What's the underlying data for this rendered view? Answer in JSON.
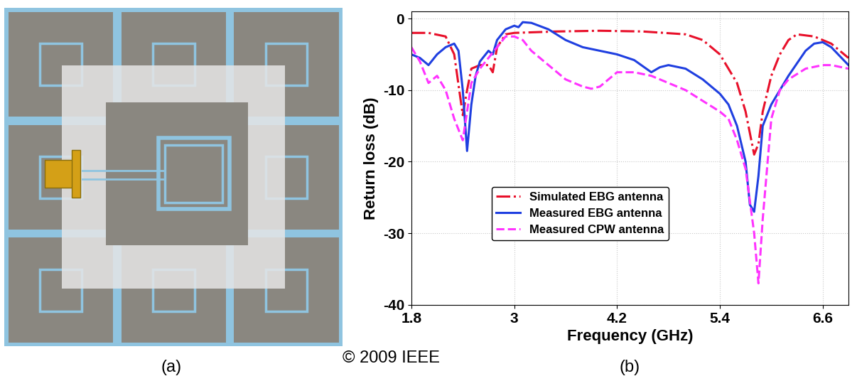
{
  "chart_data": {
    "type": "line",
    "x_label": "Frequency (GHz)",
    "y_label": "Return loss (dB)",
    "annotations": [
      "(a)",
      "(b)",
      "© 2009 IEEE"
    ],
    "xlim": [
      1.8,
      6.9
    ],
    "xticks": [
      1.8,
      3,
      4.2,
      5.4,
      6.6
    ],
    "ylim": [
      -40,
      1
    ],
    "yticks": [
      -40,
      -30,
      -20,
      -10,
      0
    ],
    "grid": true,
    "legend": "lower left",
    "series": [
      {
        "name": "Simulated EBG antenna",
        "color": "#e8102a",
        "line_style": "dashdot",
        "x": [
          1.8,
          2.0,
          2.2,
          2.3,
          2.4,
          2.45,
          2.5,
          2.6,
          2.7,
          2.75,
          2.8,
          2.9,
          3.0,
          3.5,
          4.0,
          4.5,
          5.0,
          5.2,
          5.4,
          5.6,
          5.7,
          5.8,
          5.85,
          5.9,
          6.0,
          6.1,
          6.2,
          6.3,
          6.5,
          6.7,
          6.9
        ],
        "values": [
          -2,
          -2,
          -2.5,
          -5,
          -13.5,
          -10,
          -7,
          -6.5,
          -6.5,
          -7.5,
          -4,
          -2.2,
          -2,
          -1.8,
          -1.7,
          -1.8,
          -2.2,
          -3,
          -5,
          -9,
          -13,
          -19,
          -17.5,
          -13,
          -8,
          -5,
          -3,
          -2.2,
          -2.5,
          -3.5,
          -5.5
        ]
      },
      {
        "name": "Measured EBG antenna",
        "color": "#1f3fe0",
        "line_style": "solid",
        "x": [
          1.8,
          1.9,
          2.0,
          2.1,
          2.2,
          2.3,
          2.35,
          2.4,
          2.45,
          2.5,
          2.55,
          2.6,
          2.7,
          2.75,
          2.8,
          2.9,
          3.0,
          3.05,
          3.1,
          3.2,
          3.4,
          3.6,
          3.8,
          4.0,
          4.2,
          4.4,
          4.6,
          4.7,
          4.8,
          5.0,
          5.2,
          5.4,
          5.5,
          5.6,
          5.7,
          5.75,
          5.8,
          5.85,
          5.9,
          6.0,
          6.2,
          6.4,
          6.5,
          6.6,
          6.7,
          6.9
        ],
        "values": [
          -5,
          -5.5,
          -6.5,
          -5,
          -4,
          -3.5,
          -4.5,
          -10,
          -18.5,
          -12,
          -8,
          -6,
          -4.5,
          -5,
          -3,
          -1.5,
          -1,
          -1.2,
          -0.5,
          -0.6,
          -1.5,
          -3,
          -4,
          -4.5,
          -5,
          -5.8,
          -7.5,
          -6.8,
          -6.5,
          -7,
          -8.5,
          -10.5,
          -12,
          -15,
          -20,
          -26,
          -27,
          -22,
          -15,
          -12,
          -8,
          -4.5,
          -3.5,
          -3.3,
          -4,
          -6.5
        ]
      },
      {
        "name": "Measured CPW antenna",
        "color": "#ff33ff",
        "line_style": "dashed",
        "x": [
          1.8,
          1.9,
          2.0,
          2.1,
          2.2,
          2.3,
          2.4,
          2.45,
          2.5,
          2.6,
          2.7,
          2.8,
          2.9,
          3.0,
          3.1,
          3.2,
          3.4,
          3.6,
          3.8,
          3.9,
          4.0,
          4.1,
          4.2,
          4.4,
          4.6,
          4.8,
          5.0,
          5.2,
          5.4,
          5.5,
          5.6,
          5.7,
          5.8,
          5.85,
          5.9,
          6.0,
          6.1,
          6.2,
          6.4,
          6.6,
          6.7,
          6.9
        ],
        "values": [
          -4,
          -6,
          -9,
          -8,
          -10,
          -14,
          -17,
          -13,
          -9,
          -7,
          -5.5,
          -4,
          -2.5,
          -2.5,
          -3,
          -4.5,
          -6.5,
          -8.5,
          -9.5,
          -9.8,
          -9.5,
          -8.5,
          -7.5,
          -7.5,
          -8,
          -9,
          -10,
          -11.5,
          -13,
          -14,
          -17,
          -21,
          -30,
          -37,
          -28,
          -14,
          -10,
          -8.5,
          -7,
          -6.5,
          -6.5,
          -7
        ]
      }
    ]
  }
}
